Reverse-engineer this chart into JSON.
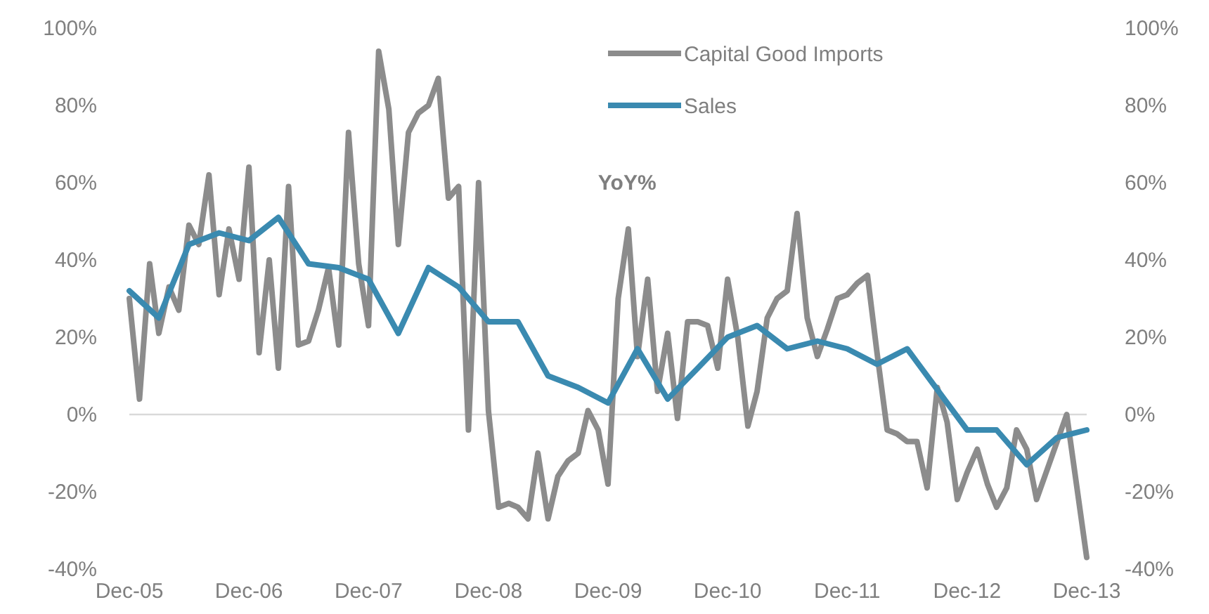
{
  "chart_data": {
    "type": "line",
    "annotations": [
      "YoY%"
    ],
    "xlim": [
      "2005-12",
      "2013-12"
    ],
    "xticks": [
      {
        "value": "2005-12",
        "label": "Dec-05"
      },
      {
        "value": "2006-12",
        "label": "Dec-06"
      },
      {
        "value": "2007-12",
        "label": "Dec-07"
      },
      {
        "value": "2008-12",
        "label": "Dec-08"
      },
      {
        "value": "2009-12",
        "label": "Dec-09"
      },
      {
        "value": "2010-12",
        "label": "Dec-10"
      },
      {
        "value": "2011-12",
        "label": "Dec-11"
      },
      {
        "value": "2012-12",
        "label": "Dec-12"
      },
      {
        "value": "2013-12",
        "label": "Dec-13"
      }
    ],
    "ylim": [
      -40,
      100
    ],
    "yticks": [
      {
        "value": -40,
        "label": "-40%"
      },
      {
        "value": -20,
        "label": "-20%"
      },
      {
        "value": 0,
        "label": "0%"
      },
      {
        "value": 20,
        "label": "20%"
      },
      {
        "value": 40,
        "label": "40%"
      },
      {
        "value": 60,
        "label": "60%"
      },
      {
        "value": 80,
        "label": "80%"
      },
      {
        "value": 100,
        "label": "100%"
      }
    ],
    "y2lim": [
      -40,
      100
    ],
    "y2ticks": [
      {
        "value": -40,
        "label": "-40%"
      },
      {
        "value": -20,
        "label": "-20%"
      },
      {
        "value": 0,
        "label": "0%"
      },
      {
        "value": 20,
        "label": "20%"
      },
      {
        "value": 40,
        "label": "40%"
      },
      {
        "value": 60,
        "label": "60%"
      },
      {
        "value": 80,
        "label": "80%"
      },
      {
        "value": 100,
        "label": "100%"
      }
    ],
    "ref_lines": [
      {
        "axis": "y",
        "value": 0,
        "color": "#d9d9d9"
      }
    ],
    "grid": false,
    "legend": "top",
    "series": [
      {
        "name": "Capital Good Imports",
        "color": "#8c8c8c",
        "x": [
          "2005-12",
          "2006-01",
          "2006-02",
          "2006-03",
          "2006-04",
          "2006-05",
          "2006-06",
          "2006-07",
          "2006-08",
          "2006-09",
          "2006-10",
          "2006-11",
          "2006-12",
          "2007-01",
          "2007-02",
          "2007-03",
          "2007-04",
          "2007-05",
          "2007-06",
          "2007-07",
          "2007-08",
          "2007-09",
          "2007-10",
          "2007-11",
          "2007-12",
          "2008-01",
          "2008-02",
          "2008-03",
          "2008-04",
          "2008-05",
          "2008-06",
          "2008-07",
          "2008-08",
          "2008-09",
          "2008-10",
          "2008-11",
          "2008-12",
          "2009-01",
          "2009-02",
          "2009-03",
          "2009-04",
          "2009-05",
          "2009-06",
          "2009-07",
          "2009-08",
          "2009-09",
          "2009-10",
          "2009-11",
          "2009-12",
          "2010-01",
          "2010-02",
          "2010-03",
          "2010-04",
          "2010-05",
          "2010-06",
          "2010-07",
          "2010-08",
          "2010-09",
          "2010-10",
          "2010-11",
          "2010-12",
          "2011-01",
          "2011-02",
          "2011-03",
          "2011-04",
          "2011-05",
          "2011-06",
          "2011-07",
          "2011-08",
          "2011-09",
          "2011-10",
          "2011-11",
          "2011-12",
          "2012-01",
          "2012-02",
          "2012-03",
          "2012-04",
          "2012-05",
          "2012-06",
          "2012-07",
          "2012-08",
          "2012-09",
          "2012-10",
          "2012-11",
          "2012-12",
          "2013-01",
          "2013-02",
          "2013-03",
          "2013-04",
          "2013-05",
          "2013-06",
          "2013-07",
          "2013-10",
          "2013-12"
        ],
        "values": [
          30,
          4,
          39,
          21,
          33,
          27,
          49,
          44,
          62,
          31,
          48,
          35,
          64,
          16,
          40,
          12,
          59,
          18,
          19,
          27,
          38,
          18,
          73,
          39,
          23,
          94,
          79,
          44,
          73,
          78,
          80,
          87,
          56,
          59,
          -4,
          60,
          1,
          -24,
          -23,
          -24,
          -27,
          -10,
          -27,
          -16,
          -12,
          -10,
          1,
          -4,
          -18,
          30,
          48,
          15,
          35,
          6,
          21,
          -1,
          24,
          24,
          23,
          12,
          35,
          20,
          -3,
          6,
          25,
          30,
          32,
          52,
          25,
          15,
          22,
          30,
          31,
          34,
          36,
          16,
          -4,
          -5,
          -7,
          -7,
          -19,
          7,
          -2,
          -22,
          -15,
          -9,
          -18,
          -24,
          -19,
          -4,
          -9,
          -22,
          0,
          -37
        ]
      },
      {
        "name": "Sales",
        "color": "#3a8ab0",
        "x": [
          "2005-12",
          "2006-03",
          "2006-06",
          "2006-09",
          "2006-12",
          "2007-03",
          "2007-06",
          "2007-09",
          "2007-12",
          "2008-03",
          "2008-06",
          "2008-09",
          "2008-12",
          "2009-03",
          "2009-06",
          "2009-09",
          "2009-12",
          "2010-03",
          "2010-06",
          "2010-09",
          "2010-12",
          "2011-03",
          "2011-06",
          "2011-09",
          "2011-12",
          "2012-03",
          "2012-06",
          "2012-12",
          "2013-03",
          "2013-06",
          "2013-09",
          "2013-12"
        ],
        "values": [
          32,
          25,
          44,
          47,
          45,
          51,
          39,
          38,
          35,
          21,
          38,
          33,
          24,
          24,
          10,
          7,
          3,
          17,
          4,
          12,
          20,
          23,
          17,
          19,
          17,
          13,
          17,
          -4,
          -4,
          -13,
          -6,
          -4
        ]
      }
    ]
  }
}
